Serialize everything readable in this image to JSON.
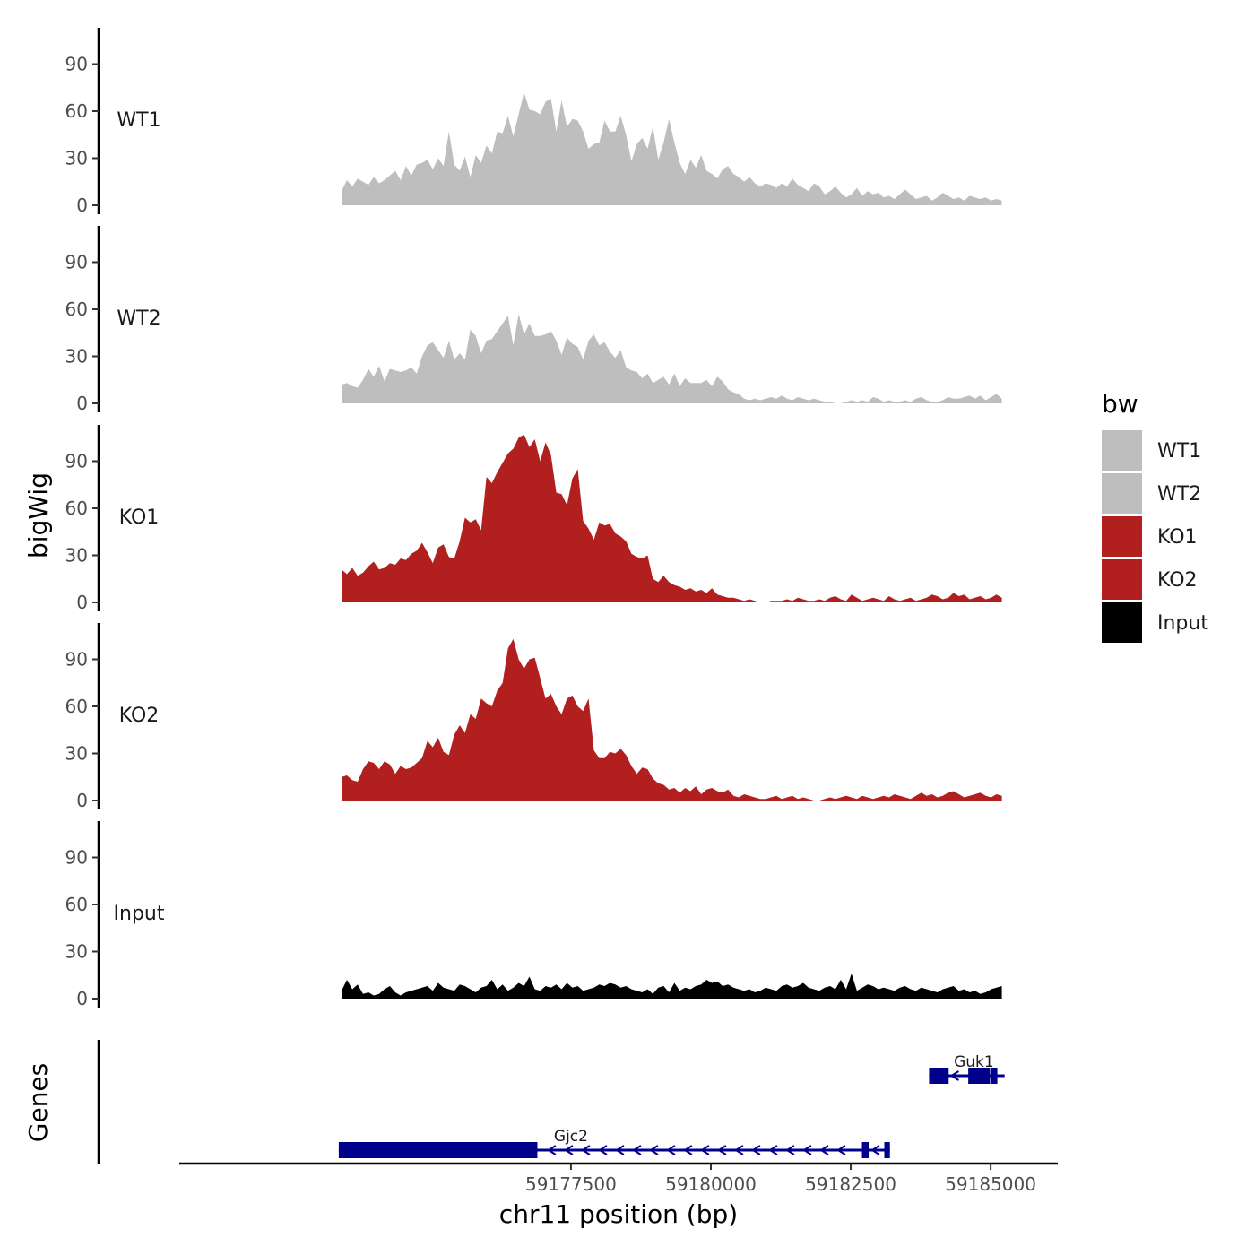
{
  "chart_data": {
    "type": "area",
    "y_axis_title": "bigWig",
    "x_axis_title": "chr11 position (bp)",
    "genes_axis_title": "Genes",
    "x_range": [
      59170500,
      59186200
    ],
    "data_x_range": [
      59173400,
      59185200
    ],
    "x_ticks": [
      59177500,
      59180000,
      59182500,
      59185000
    ],
    "x_tick_labels": [
      "59177500",
      "59180000",
      "59182500",
      "59185000"
    ],
    "y_range": [
      0,
      112
    ],
    "y_ticks": [
      0,
      30,
      60,
      90
    ],
    "y_tick_labels": [
      "0",
      "30",
      "60",
      "90"
    ],
    "legend": {
      "title": "bw",
      "items": [
        {
          "label": "WT1",
          "color": "#bebebe"
        },
        {
          "label": "WT2",
          "color": "#bebebe"
        },
        {
          "label": "KO1",
          "color": "#b21f1f"
        },
        {
          "label": "KO2",
          "color": "#b21f1f"
        },
        {
          "label": "Input",
          "color": "#000000"
        }
      ]
    },
    "tracks": [
      {
        "name": "WT1",
        "color": "#bebebe",
        "x_start": 59173400,
        "x_end": 59185200,
        "values": [
          9,
          16,
          12,
          17,
          15,
          13,
          18,
          14,
          16,
          19,
          22,
          16,
          25,
          19,
          26,
          27,
          29,
          23,
          30,
          25,
          47,
          26,
          22,
          31,
          18,
          32,
          27,
          38,
          33,
          47,
          46,
          57,
          44,
          58,
          72,
          61,
          60,
          58,
          66,
          68,
          47,
          67,
          50,
          55,
          54,
          47,
          36,
          39,
          40,
          54,
          47,
          47,
          57,
          45,
          28,
          39,
          43,
          36,
          50,
          29,
          40,
          55,
          40,
          27,
          20,
          29,
          24,
          32,
          22,
          20,
          17,
          23,
          25,
          20,
          18,
          15,
          18,
          14,
          12,
          14,
          13,
          11,
          14,
          12,
          17,
          13,
          11,
          9,
          14,
          12,
          7,
          9,
          12,
          8,
          5,
          7,
          11,
          6,
          9,
          7,
          8,
          5,
          6,
          4,
          7,
          10,
          7,
          4,
          5,
          6,
          3,
          5,
          8,
          6,
          4,
          5,
          3,
          6,
          5,
          4,
          5,
          3,
          4,
          3
        ]
      },
      {
        "name": "WT2",
        "color": "#bebebe",
        "x_start": 59173400,
        "x_end": 59185200,
        "values": [
          12,
          13,
          11,
          10,
          15,
          22,
          17,
          24,
          14,
          22,
          21,
          20,
          21,
          23,
          19,
          30,
          37,
          39,
          34,
          29,
          40,
          28,
          32,
          28,
          47,
          43,
          32,
          40,
          41,
          46,
          51,
          56,
          37,
          57,
          44,
          51,
          43,
          43,
          44,
          46,
          40,
          31,
          42,
          38,
          36,
          28,
          40,
          44,
          37,
          39,
          33,
          29,
          34,
          23,
          21,
          20,
          16,
          19,
          13,
          15,
          17,
          12,
          19,
          11,
          16,
          13,
          13,
          13,
          15,
          11,
          17,
          14,
          9,
          7,
          6,
          3,
          2,
          3,
          2,
          3,
          4,
          3,
          5,
          3,
          2,
          4,
          3,
          2,
          3,
          2,
          1,
          1,
          0,
          0,
          1,
          2,
          1,
          2,
          1,
          4,
          3,
          1,
          2,
          1,
          1,
          2,
          1,
          3,
          4,
          2,
          1,
          1,
          2,
          4,
          3,
          3,
          4,
          5,
          3,
          5,
          2,
          4,
          6,
          3
        ]
      },
      {
        "name": "KO1",
        "color": "#b21f1f",
        "x_start": 59173400,
        "x_end": 59185200,
        "values": [
          21,
          18,
          22,
          17,
          19,
          23,
          26,
          21,
          22,
          25,
          24,
          28,
          27,
          31,
          33,
          38,
          32,
          25,
          35,
          37,
          29,
          28,
          39,
          54,
          51,
          53,
          46,
          80,
          76,
          83,
          89,
          95,
          98,
          105,
          107,
          99,
          104,
          90,
          102,
          94,
          70,
          69,
          62,
          79,
          85,
          52,
          47,
          40,
          51,
          49,
          50,
          44,
          42,
          39,
          31,
          29,
          28,
          30,
          15,
          13,
          17,
          13,
          11,
          10,
          8,
          9,
          7,
          8,
          6,
          9,
          5,
          4,
          3,
          3,
          2,
          1,
          2,
          1,
          0,
          0,
          1,
          1,
          1,
          2,
          1,
          3,
          2,
          1,
          1,
          2,
          1,
          3,
          4,
          2,
          1,
          5,
          3,
          1,
          2,
          3,
          2,
          1,
          4,
          2,
          1,
          2,
          3,
          1,
          2,
          3,
          5,
          4,
          2,
          3,
          6,
          4,
          5,
          2,
          3,
          4,
          2,
          3,
          5,
          3
        ]
      },
      {
        "name": "KO2",
        "color": "#b21f1f",
        "x_start": 59173400,
        "x_end": 59185200,
        "values": [
          15,
          16,
          13,
          12,
          20,
          25,
          24,
          20,
          25,
          23,
          17,
          22,
          20,
          21,
          24,
          27,
          38,
          34,
          40,
          31,
          29,
          42,
          48,
          43,
          55,
          52,
          65,
          62,
          60,
          70,
          75,
          97,
          103,
          90,
          84,
          90,
          91,
          78,
          65,
          68,
          60,
          55,
          65,
          67,
          60,
          57,
          65,
          32,
          27,
          27,
          31,
          30,
          33,
          29,
          22,
          17,
          21,
          20,
          14,
          11,
          10,
          7,
          8,
          5,
          8,
          6,
          9,
          4,
          7,
          8,
          6,
          5,
          7,
          3,
          2,
          4,
          3,
          2,
          1,
          1,
          2,
          3,
          1,
          2,
          3,
          1,
          2,
          1,
          0,
          0,
          1,
          2,
          1,
          2,
          3,
          2,
          1,
          3,
          2,
          1,
          2,
          3,
          2,
          4,
          3,
          2,
          1,
          3,
          5,
          3,
          4,
          2,
          3,
          5,
          6,
          4,
          2,
          3,
          4,
          5,
          3,
          2,
          4,
          3
        ]
      },
      {
        "name": "Input",
        "color": "#000000",
        "x_start": 59173400,
        "x_end": 59185200,
        "values": [
          5,
          12,
          6,
          9,
          3,
          4,
          2,
          3,
          6,
          8,
          4,
          2,
          4,
          5,
          6,
          7,
          8,
          5,
          10,
          7,
          6,
          5,
          9,
          8,
          6,
          4,
          7,
          8,
          12,
          6,
          9,
          5,
          7,
          10,
          8,
          14,
          6,
          5,
          8,
          7,
          9,
          6,
          10,
          7,
          8,
          5,
          6,
          7,
          9,
          8,
          10,
          9,
          7,
          8,
          6,
          5,
          4,
          6,
          3,
          7,
          8,
          4,
          10,
          5,
          7,
          6,
          8,
          9,
          12,
          10,
          11,
          8,
          9,
          7,
          6,
          5,
          6,
          4,
          5,
          7,
          6,
          5,
          8,
          9,
          7,
          8,
          10,
          7,
          6,
          5,
          7,
          8,
          6,
          12,
          6,
          16,
          5,
          7,
          9,
          8,
          6,
          7,
          6,
          5,
          7,
          8,
          6,
          5,
          7,
          6,
          5,
          4,
          6,
          7,
          8,
          5,
          6,
          4,
          5,
          3,
          4,
          6,
          7,
          8
        ]
      }
    ],
    "genes": [
      {
        "name": "Guk1",
        "row": 0,
        "start": 59183900,
        "end": 59185250,
        "strand": "-",
        "exons": [
          [
            59183900,
            59184250
          ],
          [
            59184600,
            59184990
          ],
          [
            59185000,
            59185120
          ]
        ],
        "label_x": 59184700
      },
      {
        "name": "Gjc2",
        "row": 1,
        "start": 59173350,
        "end": 59183200,
        "strand": "-",
        "exons": [
          [
            59173350,
            59176900
          ],
          [
            59182700,
            59182820
          ],
          [
            59183100,
            59183200
          ]
        ],
        "label_x": 59177500
      }
    ]
  }
}
